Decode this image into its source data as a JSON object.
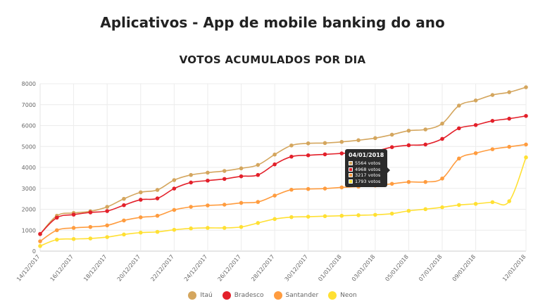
{
  "header": {
    "title": "Aplicativos - App de mobile banking do ano"
  },
  "chart_data": {
    "type": "line",
    "title": "VOTOS ACUMULADOS POR DIA",
    "xlabel": "",
    "ylabel": "",
    "ylim": [
      0,
      8000
    ],
    "yticks": [
      "0",
      "1000",
      "2000",
      "3000",
      "4000",
      "5000",
      "6000",
      "7000",
      "8000"
    ],
    "x": [
      "14/12/2017",
      "15/12/2017",
      "16/12/2017",
      "17/12/2017",
      "18/12/2017",
      "19/12/2017",
      "20/12/2017",
      "21/12/2017",
      "22/12/2017",
      "23/12/2017",
      "24/12/2017",
      "25/12/2017",
      "26/12/2017",
      "27/12/2017",
      "28/12/2017",
      "29/12/2017",
      "30/12/2017",
      "31/12/2017",
      "01/01/2018",
      "02/01/2018",
      "03/01/2018",
      "04/01/2018",
      "05/01/2018",
      "06/01/2018",
      "07/01/2018",
      "08/01/2018",
      "09/01/2018",
      "10/01/2018",
      "11/01/2018",
      "12/01/2018"
    ],
    "xtick_labels": [
      "14/12/2017",
      "16/12/2017",
      "18/12/2017",
      "20/12/2017",
      "22/12/2017",
      "24/12/2017",
      "26/12/2017",
      "28/12/2017",
      "30/12/2017",
      "01/01/2018",
      "03/01/2018",
      "05/01/2018",
      "07/01/2018",
      "09/01/2018",
      "12/01/2018"
    ],
    "grid": true,
    "legend_position": "bottom",
    "series": [
      {
        "name": "Itaú",
        "color": "#d4a65e",
        "values": [
          810,
          1690,
          1825,
          1905,
          2115,
          2500,
          2810,
          2925,
          3395,
          3640,
          3750,
          3830,
          3955,
          4120,
          4615,
          5050,
          5150,
          5165,
          5220,
          5300,
          5400,
          5564,
          5755,
          5815,
          6095,
          6955,
          7200,
          7460,
          7595,
          7830
        ]
      },
      {
        "name": "Bradesco",
        "color": "#e3202a",
        "values": [
          820,
          1600,
          1745,
          1850,
          1915,
          2195,
          2455,
          2520,
          2990,
          3280,
          3370,
          3450,
          3575,
          3640,
          4145,
          4515,
          4580,
          4625,
          4670,
          4725,
          4780,
          4968,
          5060,
          5095,
          5365,
          5870,
          6025,
          6225,
          6330,
          6460
        ]
      },
      {
        "name": "Santander",
        "color": "#ff9c3f",
        "values": [
          470,
          1000,
          1110,
          1155,
          1230,
          1465,
          1615,
          1690,
          1970,
          2115,
          2185,
          2220,
          2305,
          2350,
          2655,
          2935,
          2970,
          2990,
          3045,
          3080,
          3135,
          3217,
          3305,
          3305,
          3470,
          4425,
          4680,
          4870,
          4985,
          5095
        ]
      },
      {
        "name": "Neon",
        "color": "#ffe033",
        "values": [
          245,
          550,
          580,
          605,
          670,
          795,
          885,
          920,
          1020,
          1085,
          1110,
          1110,
          1155,
          1345,
          1535,
          1625,
          1645,
          1670,
          1690,
          1715,
          1735,
          1793,
          1925,
          2005,
          2095,
          2205,
          2260,
          2340,
          2385,
          4480
        ]
      }
    ]
  },
  "tooltip": {
    "date": "04/01/2018",
    "rows": [
      {
        "label": "5564 votos",
        "color": "#d4a65e"
      },
      {
        "label": "4968 votos",
        "color": "#e3202a"
      },
      {
        "label": "3217 votos",
        "color": "#ff9c3f"
      },
      {
        "label": "1793 votos",
        "color": "#ffe033"
      }
    ]
  }
}
